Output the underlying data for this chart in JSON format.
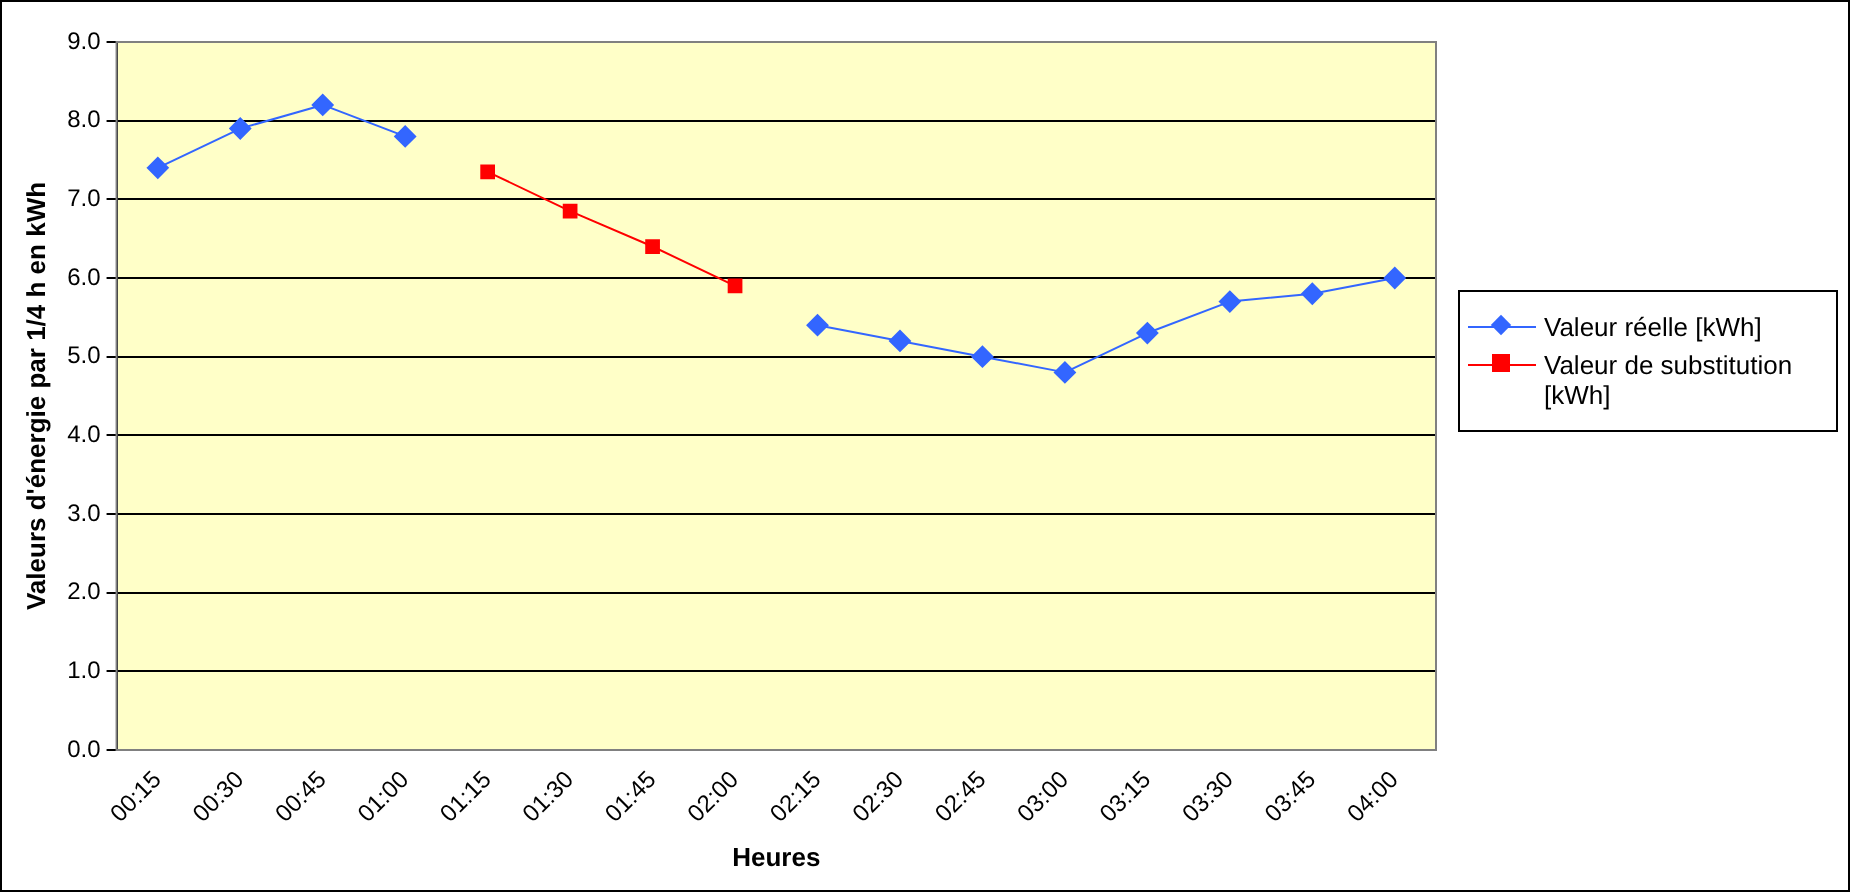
{
  "chart_data": {
    "type": "line",
    "xlabel": "Heures",
    "ylabel": "Valeurs d'énergie par 1/4 h en kWh",
    "categories": [
      "00:15",
      "00:30",
      "00:45",
      "01:00",
      "01:15",
      "01:30",
      "01:45",
      "02:00",
      "02:15",
      "02:30",
      "02:45",
      "03:00",
      "03:15",
      "03:30",
      "03:45",
      "04:00"
    ],
    "series": [
      {
        "name": "Valeur réelle [kWh]",
        "color": "#3366ff",
        "marker": "diamond",
        "values": [
          7.4,
          7.9,
          8.2,
          7.8,
          null,
          null,
          null,
          null,
          5.4,
          5.2,
          5.0,
          4.8,
          5.3,
          5.7,
          5.8,
          6.0
        ]
      },
      {
        "name": "Valeur de substitution [kWh]",
        "color": "#ff0000",
        "marker": "square",
        "values": [
          null,
          null,
          null,
          null,
          7.35,
          6.85,
          6.4,
          5.9,
          null,
          null,
          null,
          null,
          null,
          null,
          null,
          null
        ]
      }
    ],
    "ylim": [
      0,
      9
    ],
    "yticks": [
      {
        "value": 0,
        "label": "0.0"
      },
      {
        "value": 1,
        "label": "1.0"
      },
      {
        "value": 2,
        "label": "2.0"
      },
      {
        "value": 3,
        "label": "3.0"
      },
      {
        "value": 4,
        "label": "4.0"
      },
      {
        "value": 5,
        "label": "5.0"
      },
      {
        "value": 6,
        "label": "6.0"
      },
      {
        "value": 7,
        "label": "7.0"
      },
      {
        "value": 8,
        "label": "8.0"
      },
      {
        "value": 9,
        "label": "9.0"
      }
    ],
    "grid": "y",
    "legend": "right"
  }
}
